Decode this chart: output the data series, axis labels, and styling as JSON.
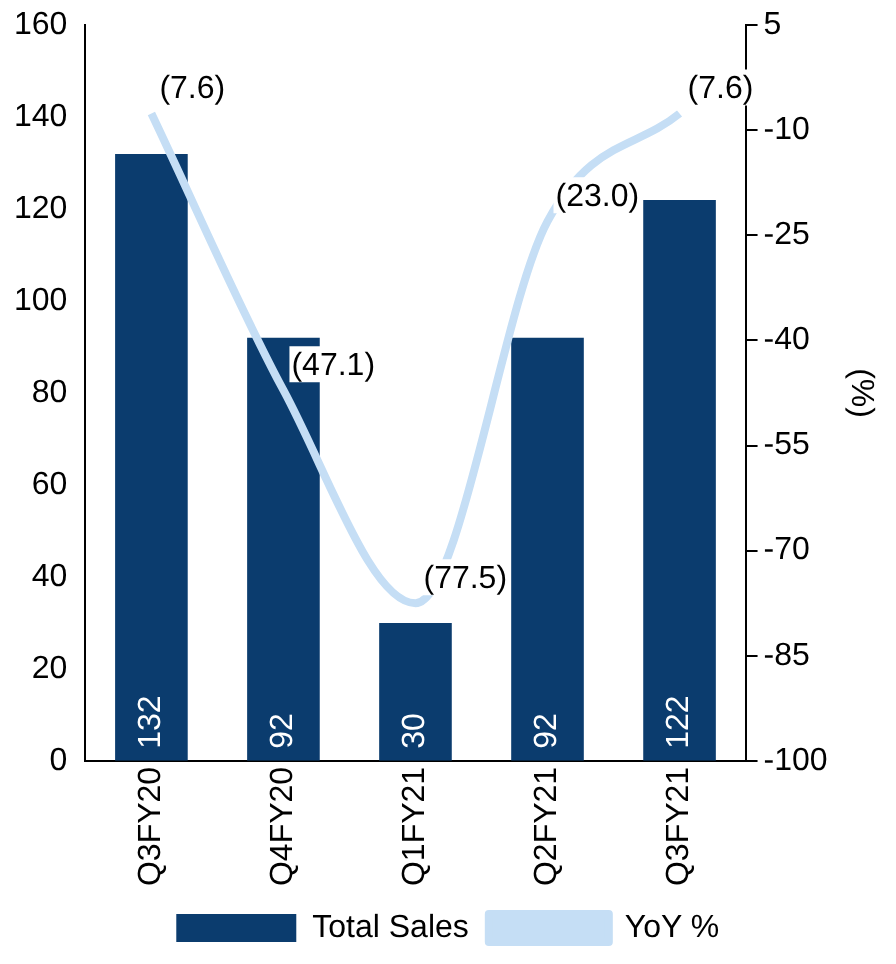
{
  "chart_data": {
    "type": "bar",
    "categories": [
      "Q3FY20",
      "Q4FY20",
      "Q1FY21",
      "Q2FY21",
      "Q3FY21"
    ],
    "series": [
      {
        "name": "Total Sales",
        "color": "#0b3c6e",
        "values": [
          132,
          92,
          30,
          92,
          122
        ],
        "value_labels": [
          "132",
          "92",
          "30",
          "92",
          "122"
        ]
      },
      {
        "name": "YoY %",
        "type": "line",
        "axis": "y2",
        "color": "#c5def5",
        "values": [
          -7.6,
          -47.1,
          -77.5,
          -23.0,
          -7.6
        ],
        "value_labels": [
          "(7.6)",
          "(47.1)",
          "(77.5)",
          "(23.0)",
          "(7.6)"
        ]
      }
    ],
    "ylim": [
      0,
      160
    ],
    "yticks": [
      0,
      20,
      40,
      60,
      80,
      100,
      120,
      140,
      160
    ],
    "y2lim": [
      -100,
      5
    ],
    "y2ticks": [
      5,
      -10,
      -25,
      -40,
      -55,
      -70,
      -85,
      -100
    ],
    "y2label": "(%)",
    "grid": false,
    "legend": "bottom",
    "marker": "none"
  }
}
